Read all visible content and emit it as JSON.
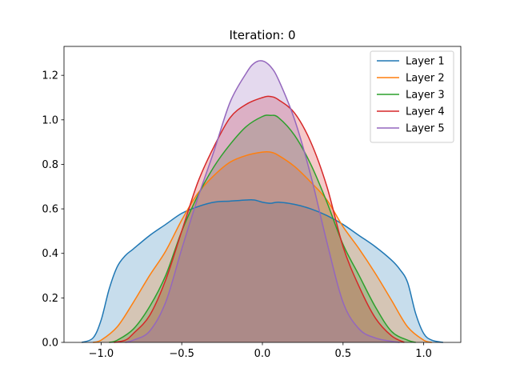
{
  "chart_data": {
    "type": "area",
    "title": "Iteration: 0",
    "xlabel": "",
    "ylabel": "",
    "xlim": [
      -1.23,
      1.23
    ],
    "ylim": [
      0,
      1.33
    ],
    "xticks": [
      -1.0,
      -0.5,
      0.0,
      0.5,
      1.0
    ],
    "xtick_labels": [
      "−1.0",
      "−0.5",
      "0.0",
      "0.5",
      "1.0"
    ],
    "yticks": [
      0.0,
      0.2,
      0.4,
      0.6,
      0.8,
      1.0,
      1.2
    ],
    "ytick_labels": [
      "0.0",
      "0.2",
      "0.4",
      "0.6",
      "0.8",
      "1.0",
      "1.2"
    ],
    "grid": false,
    "legend_position": "top-right",
    "series": [
      {
        "name": "Layer 1",
        "color": "#1f77b4",
        "x": [
          -1.12,
          -1.05,
          -1.0,
          -0.95,
          -0.9,
          -0.85,
          -0.8,
          -0.7,
          -0.6,
          -0.5,
          -0.4,
          -0.3,
          -0.2,
          -0.1,
          -0.05,
          0.0,
          0.05,
          0.1,
          0.2,
          0.3,
          0.4,
          0.5,
          0.6,
          0.7,
          0.8,
          0.85,
          0.9,
          0.95,
          1.0,
          1.05,
          1.12
        ],
        "y": [
          0.0,
          0.02,
          0.1,
          0.24,
          0.34,
          0.39,
          0.42,
          0.48,
          0.53,
          0.58,
          0.61,
          0.63,
          0.635,
          0.64,
          0.64,
          0.63,
          0.625,
          0.63,
          0.62,
          0.6,
          0.57,
          0.53,
          0.48,
          0.43,
          0.37,
          0.33,
          0.27,
          0.13,
          0.04,
          0.01,
          0.0
        ]
      },
      {
        "name": "Layer 2",
        "color": "#ff7f0e",
        "x": [
          -1.05,
          -1.0,
          -0.9,
          -0.8,
          -0.7,
          -0.6,
          -0.5,
          -0.4,
          -0.3,
          -0.2,
          -0.1,
          0.0,
          0.05,
          0.1,
          0.2,
          0.3,
          0.4,
          0.5,
          0.6,
          0.7,
          0.8,
          0.9,
          1.0,
          1.05
        ],
        "y": [
          0.0,
          0.01,
          0.07,
          0.18,
          0.3,
          0.41,
          0.55,
          0.67,
          0.75,
          0.81,
          0.84,
          0.855,
          0.855,
          0.84,
          0.79,
          0.72,
          0.64,
          0.52,
          0.42,
          0.31,
          0.19,
          0.07,
          0.01,
          0.0
        ]
      },
      {
        "name": "Layer 3",
        "color": "#2ca02c",
        "x": [
          -0.95,
          -0.9,
          -0.8,
          -0.7,
          -0.6,
          -0.5,
          -0.4,
          -0.3,
          -0.2,
          -0.1,
          0.0,
          0.05,
          0.1,
          0.2,
          0.3,
          0.4,
          0.5,
          0.6,
          0.7,
          0.8,
          0.9,
          0.95
        ],
        "y": [
          0.0,
          0.01,
          0.06,
          0.16,
          0.3,
          0.5,
          0.66,
          0.79,
          0.89,
          0.97,
          1.015,
          1.02,
          1.01,
          0.93,
          0.8,
          0.63,
          0.44,
          0.3,
          0.16,
          0.05,
          0.01,
          0.0
        ]
      },
      {
        "name": "Layer 4",
        "color": "#d62728",
        "x": [
          -0.92,
          -0.85,
          -0.8,
          -0.7,
          -0.6,
          -0.5,
          -0.4,
          -0.3,
          -0.2,
          -0.1,
          0.0,
          0.05,
          0.1,
          0.2,
          0.3,
          0.4,
          0.5,
          0.6,
          0.7,
          0.8,
          0.88
        ],
        "y": [
          0.0,
          0.01,
          0.04,
          0.12,
          0.28,
          0.5,
          0.72,
          0.88,
          1.01,
          1.07,
          1.1,
          1.105,
          1.09,
          1.03,
          0.9,
          0.7,
          0.43,
          0.25,
          0.11,
          0.03,
          0.0
        ]
      },
      {
        "name": "Layer 5",
        "color": "#9467bd",
        "x": [
          -0.85,
          -0.8,
          -0.7,
          -0.6,
          -0.5,
          -0.4,
          -0.3,
          -0.2,
          -0.1,
          -0.05,
          0.0,
          0.05,
          0.1,
          0.2,
          0.3,
          0.4,
          0.5,
          0.6,
          0.7,
          0.8,
          0.85
        ],
        "y": [
          0.0,
          0.01,
          0.05,
          0.18,
          0.42,
          0.65,
          0.86,
          1.08,
          1.21,
          1.255,
          1.265,
          1.24,
          1.18,
          1.0,
          0.75,
          0.45,
          0.18,
          0.06,
          0.02,
          0.005,
          0.0
        ]
      }
    ]
  }
}
